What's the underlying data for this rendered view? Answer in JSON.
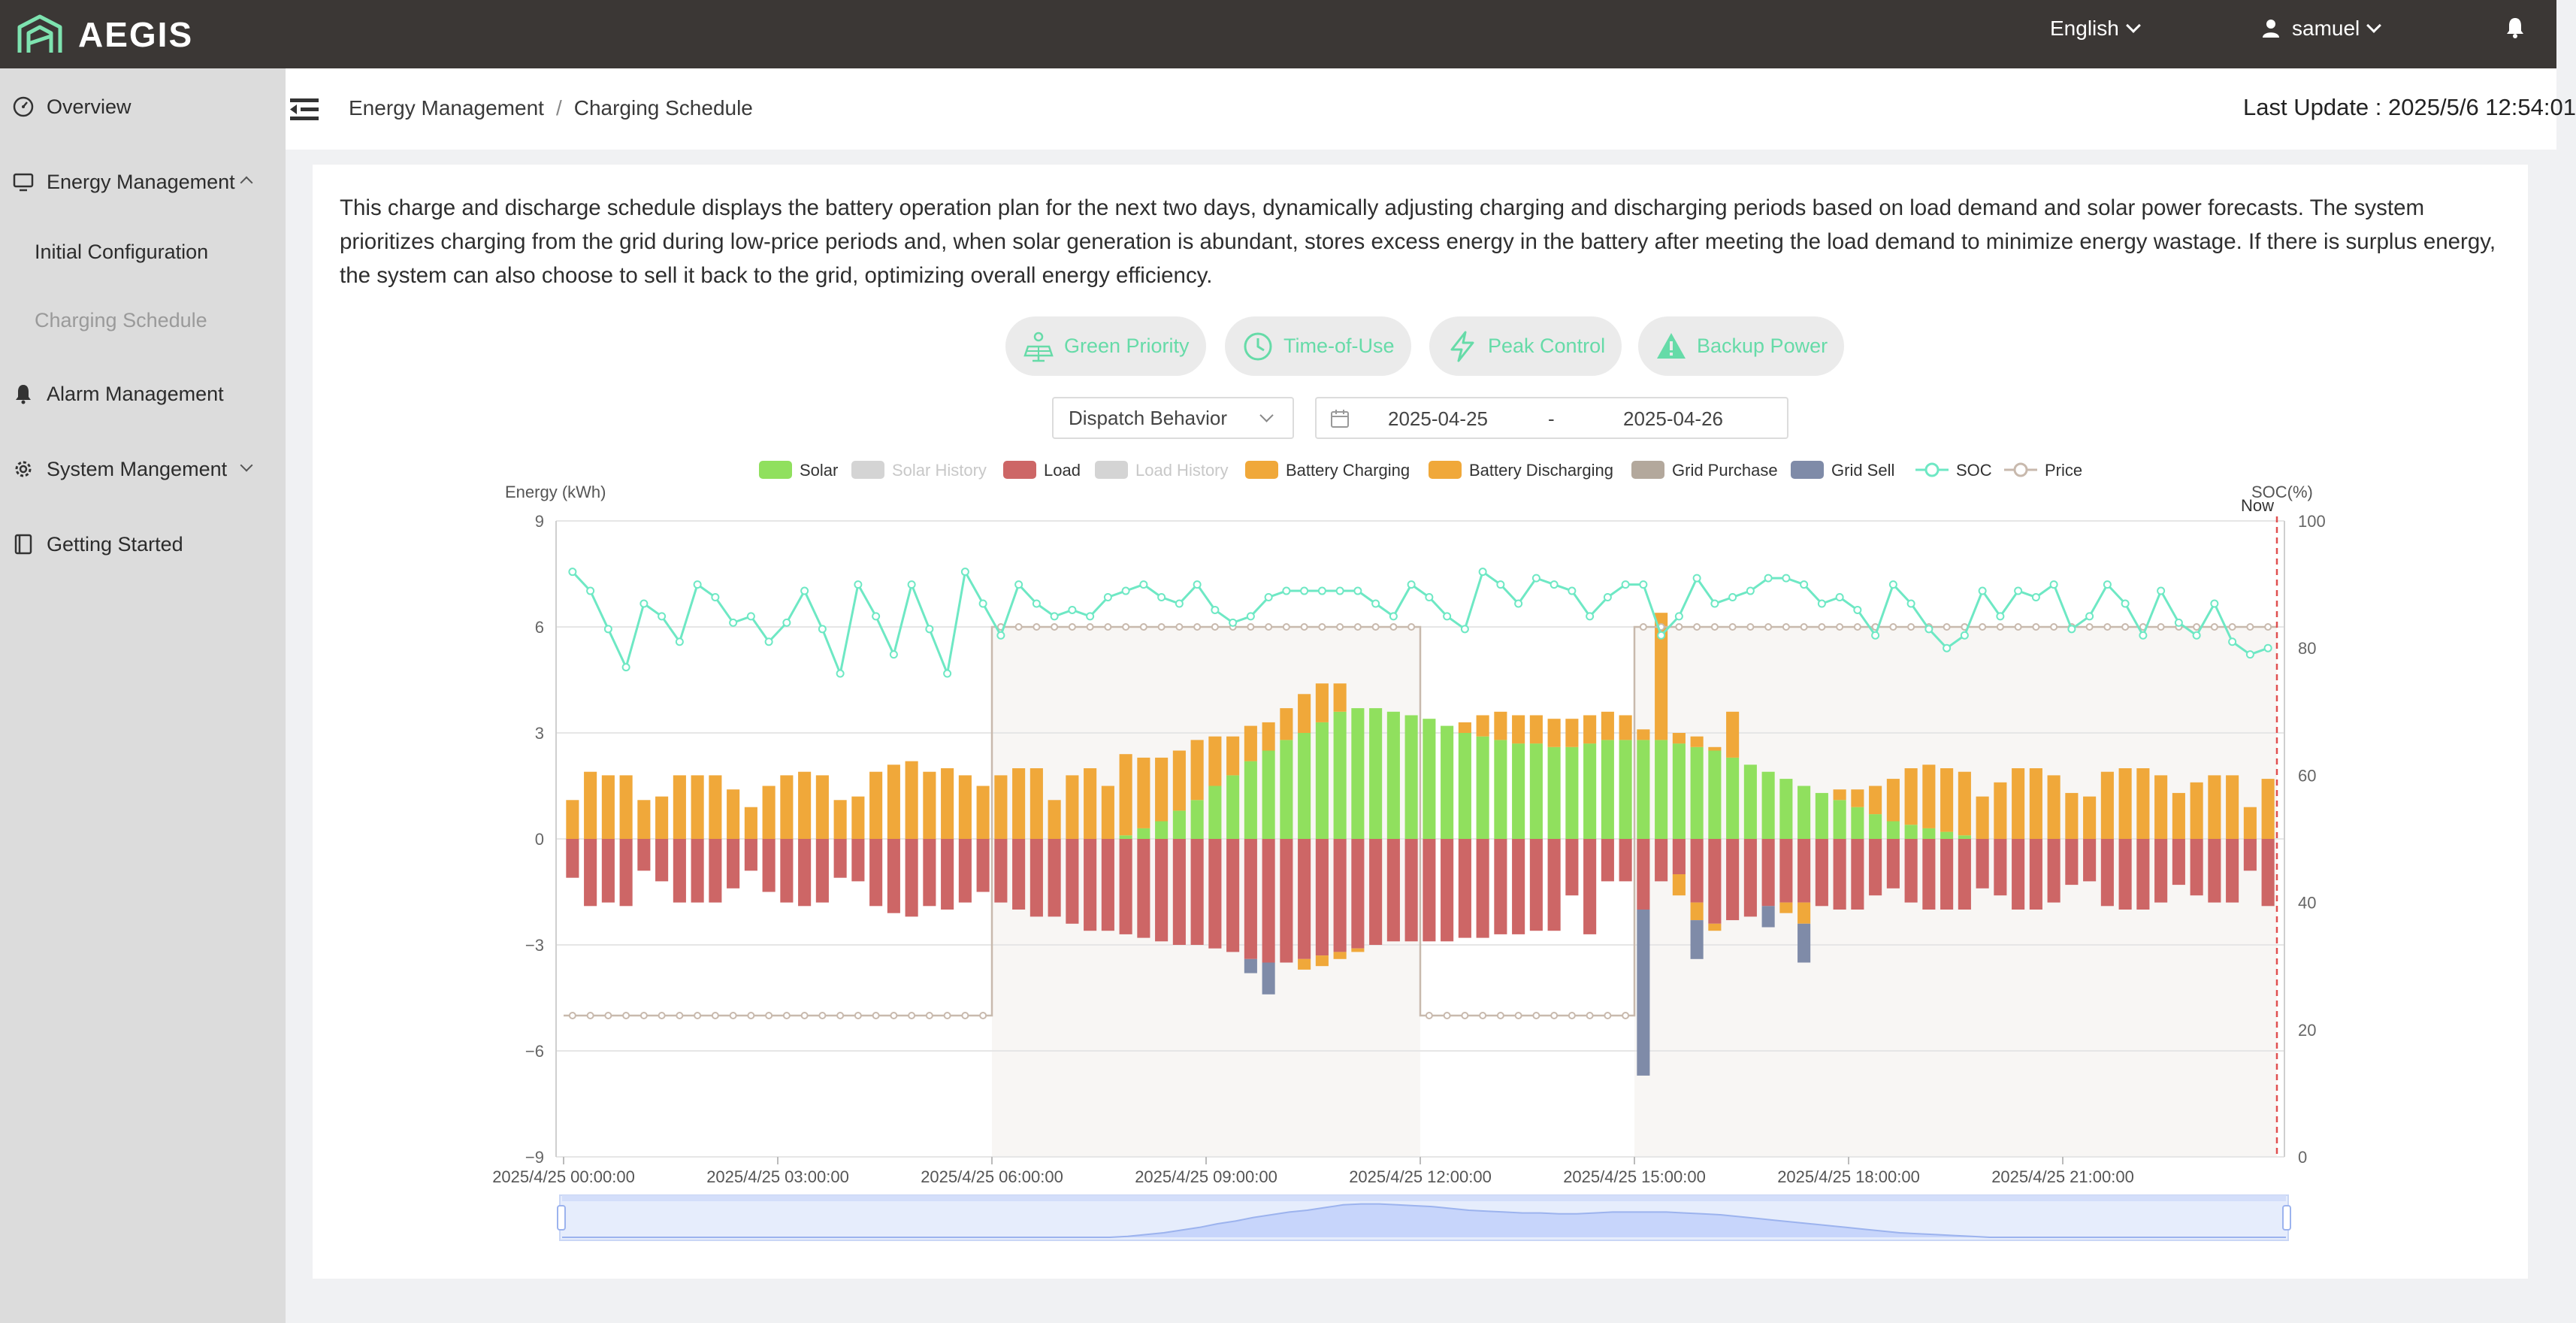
{
  "app": {
    "brand": "AEGIS",
    "language": "English",
    "user": "samuel"
  },
  "sidebar": {
    "overview": "Overview",
    "energy_management": "Energy Management",
    "initial_configuration": "Initial Configuration",
    "charging_schedule": "Charging Schedule",
    "alarm_management": "Alarm Management",
    "system_management": "System Mangement",
    "getting_started": "Getting Started"
  },
  "header": {
    "breadcrumb_parent": "Energy Management",
    "breadcrumb_sep": "/",
    "breadcrumb_current": "Charging Schedule",
    "last_update": "Last Update : 2025/5/6 12:54:01"
  },
  "description": "This charge and discharge schedule displays the battery operation plan for the next two days, dynamically adjusting charging and discharging periods based on load demand and solar power forecasts. The system prioritizes charging from the grid during low-price periods and, when solar generation is abundant, stores excess energy in the battery after meeting the load demand to minimize energy wastage. If there is surplus energy, the system can also choose to sell it back to the grid, optimizing overall energy efficiency.",
  "modes": [
    "Green Priority",
    "Time-of-Use",
    "Peak Control",
    "Backup Power"
  ],
  "filters": {
    "dispatch": "Dispatch Behavior",
    "date_from": "2025-04-25",
    "date_sep": "-",
    "date_to": "2025-04-26"
  },
  "colors": {
    "accent": "#66dba8",
    "solar": "#90e05e",
    "load": "#cd6666",
    "battery_charging": "#f0a83a",
    "battery_discharging": "#f0a83a",
    "grid_purchase": "#b3a89c",
    "grid_sell": "#7f8ba8",
    "soc": "#6ee8c4",
    "price": "#c8b9ad",
    "history": "#d4d4d4",
    "now_line": "#e05050"
  },
  "chart_data": {
    "type": "bar",
    "ylabel_left": "Energy (kWh)",
    "ylabel_right": "SOC(%)",
    "now_label": "Now",
    "ylim_left": [
      -9,
      9
    ],
    "yticks_left": [
      "9",
      "6",
      "3",
      "0",
      "−3",
      "−6",
      "−9"
    ],
    "ylim_right": [
      0,
      100
    ],
    "yticks_right": [
      "100",
      "80",
      "60",
      "40",
      "20",
      "0"
    ],
    "xticks": [
      "2025/4/25 00:00:00",
      "2025/4/25 03:00:00",
      "2025/4/25 06:00:00",
      "2025/4/25 09:00:00",
      "2025/4/25 12:00:00",
      "2025/4/25 15:00:00",
      "2025/4/25 18:00:00",
      "2025/4/25 21:00:00"
    ],
    "interval_minutes": 15,
    "legend": [
      "Solar",
      "Solar History",
      "Load",
      "Load History",
      "Battery Charging",
      "Battery Discharging",
      "Grid Purchase",
      "Grid Sell",
      "SOC",
      "Price"
    ],
    "solar": [
      0,
      0,
      0,
      0,
      0,
      0,
      0,
      0,
      0,
      0,
      0,
      0,
      0,
      0,
      0,
      0,
      0,
      0,
      0,
      0,
      0,
      0,
      0,
      0,
      0,
      0,
      0,
      0,
      0,
      0,
      0,
      0.1,
      0.3,
      0.5,
      0.8,
      1.1,
      1.5,
      1.8,
      2.2,
      2.5,
      2.8,
      3.0,
      3.3,
      3.6,
      3.7,
      3.7,
      3.6,
      3.5,
      3.4,
      3.2,
      3.0,
      2.9,
      2.8,
      2.7,
      2.7,
      2.6,
      2.6,
      2.7,
      2.8,
      2.8,
      2.8,
      2.8,
      2.7,
      2.6,
      2.5,
      2.3,
      2.1,
      1.9,
      1.7,
      1.5,
      1.3,
      1.1,
      0.9,
      0.7,
      0.5,
      0.4,
      0.3,
      0.2,
      0.1,
      0,
      0,
      0,
      0,
      0,
      0,
      0,
      0,
      0,
      0,
      0,
      0,
      0,
      0,
      0,
      0,
      0
    ],
    "battery_charging": [
      1.1,
      1.9,
      1.8,
      1.8,
      1.1,
      1.2,
      1.8,
      1.8,
      1.8,
      1.4,
      0.9,
      1.5,
      1.8,
      1.9,
      1.8,
      1.1,
      1.2,
      1.9,
      2.1,
      2.2,
      1.9,
      2.0,
      1.8,
      1.5,
      1.8,
      2.0,
      2.0,
      1.1,
      1.8,
      2.0,
      1.5,
      2.3,
      2.0,
      1.8,
      1.7,
      1.7,
      1.4,
      1.1,
      1.0,
      0.8,
      0.9,
      1.1,
      1.1,
      0.8,
      0,
      0,
      0,
      0,
      0,
      0,
      0.3,
      0.6,
      0.8,
      0.8,
      0.8,
      0.8,
      0.8,
      0.8,
      0.8,
      0.7,
      0.3,
      3.6,
      0.3,
      0.3,
      0.1,
      1.3,
      0,
      0,
      0,
      0,
      0,
      0.3,
      0.5,
      0.8,
      1.2,
      1.6,
      1.8,
      1.8,
      1.8,
      1.2,
      1.6,
      2.0,
      2.0,
      1.8,
      1.3,
      1.2,
      1.9,
      2.0,
      2.0,
      1.8,
      1.3,
      1.6,
      1.8,
      1.8,
      0.9,
      1.7
    ],
    "load": [
      -1.1,
      -1.9,
      -1.8,
      -1.9,
      -0.9,
      -1.2,
      -1.8,
      -1.8,
      -1.8,
      -1.4,
      -0.9,
      -1.5,
      -1.8,
      -1.9,
      -1.8,
      -1.1,
      -1.2,
      -1.9,
      -2.1,
      -2.2,
      -1.9,
      -2.0,
      -1.8,
      -1.5,
      -1.8,
      -2.0,
      -2.2,
      -2.2,
      -2.4,
      -2.6,
      -2.6,
      -2.7,
      -2.8,
      -2.9,
      -3.0,
      -3.0,
      -3.1,
      -3.2,
      -3.4,
      -3.5,
      -3.5,
      -3.4,
      -3.3,
      -3.2,
      -3.1,
      -3.0,
      -2.9,
      -2.9,
      -2.9,
      -2.9,
      -2.8,
      -2.8,
      -2.7,
      -2.7,
      -2.6,
      -2.6,
      -1.6,
      -2.7,
      -1.2,
      -1.2,
      -2.0,
      -1.2,
      -1.0,
      -1.8,
      -2.4,
      -2.3,
      -2.2,
      -1.9,
      -1.8,
      -1.8,
      -1.9,
      -2.0,
      -2.0,
      -1.6,
      -1.4,
      -1.8,
      -2.0,
      -2.0,
      -2.0,
      -1.4,
      -1.6,
      -2.0,
      -2.0,
      -1.8,
      -1.3,
      -1.2,
      -1.9,
      -2.0,
      -2.0,
      -1.8,
      -1.3,
      -1.6,
      -1.8,
      -1.8,
      -0.9,
      -1.9
    ],
    "battery_discharging": [
      0,
      0,
      0,
      0,
      0,
      0,
      0,
      0,
      0,
      0,
      0,
      0,
      0,
      0,
      0,
      0,
      0,
      0,
      0,
      0,
      0,
      0,
      0,
      0,
      0,
      0,
      0,
      0,
      0,
      0,
      0,
      0,
      0,
      0,
      0,
      0,
      0,
      0,
      0,
      0,
      0,
      -0.3,
      -0.3,
      -0.2,
      -0.1,
      0,
      0,
      0,
      0,
      0,
      0,
      0,
      0,
      0,
      0,
      0,
      0,
      0,
      0,
      0,
      0,
      0,
      -0.6,
      -0.5,
      -0.2,
      0,
      0,
      0,
      -0.3,
      -0.6,
      0,
      0,
      0,
      0,
      0,
      0,
      0,
      0,
      0,
      0,
      0,
      0,
      0,
      0,
      0,
      0,
      0,
      0,
      0,
      0,
      0,
      0,
      0,
      0,
      0,
      0
    ],
    "grid_sell": [
      0,
      0,
      0,
      0,
      0,
      0,
      0,
      0,
      0,
      0,
      0,
      0,
      0,
      0,
      0,
      0,
      0,
      0,
      0,
      0,
      0,
      0,
      0,
      0,
      0,
      0,
      0,
      0,
      0,
      0,
      0,
      0,
      0,
      0,
      0,
      0,
      0,
      0,
      -0.4,
      -0.9,
      0,
      0,
      0,
      0,
      0,
      0,
      0,
      0,
      0,
      0,
      0,
      0,
      0,
      0,
      0,
      0,
      0,
      0,
      0,
      0,
      -4.7,
      0,
      0,
      -1.1,
      0,
      0,
      0,
      -0.6,
      0,
      -1.1,
      0,
      0,
      0,
      0,
      0,
      0,
      0,
      0,
      0,
      0,
      0,
      0,
      0,
      0,
      0,
      0,
      0,
      0,
      0,
      0,
      0,
      0,
      0,
      0,
      0,
      0
    ],
    "soc": [
      92,
      89,
      83,
      77,
      87,
      85,
      81,
      90,
      88,
      84,
      85,
      81,
      84,
      89,
      83,
      76,
      90,
      85,
      79,
      90,
      83,
      76,
      92,
      87,
      82,
      90,
      87,
      85,
      86,
      85,
      88,
      89,
      90,
      88,
      87,
      90,
      86,
      84,
      85,
      88,
      89,
      89,
      89,
      89,
      89,
      87,
      85,
      90,
      88,
      85,
      83,
      92,
      90,
      87,
      91,
      90,
      89,
      85,
      88,
      90,
      90,
      82,
      85,
      91,
      87,
      88,
      89,
      91,
      91,
      90,
      87,
      88,
      86,
      82,
      90,
      87,
      83,
      80,
      82,
      89,
      85,
      89,
      88,
      90,
      83,
      85,
      90,
      87,
      82,
      89,
      84,
      82,
      87,
      81,
      79,
      80
    ],
    "price": [
      -5.0,
      -5.0,
      -5.0,
      -5.0,
      -5.0,
      -5.0,
      -5.0,
      -5.0,
      -5.0,
      -5.0,
      -5.0,
      -5.0,
      -5.0,
      -5.0,
      -5.0,
      -5.0,
      -5.0,
      -5.0,
      -5.0,
      -5.0,
      -5.0,
      -5.0,
      -5.0,
      -5.0,
      6.0,
      6.0,
      6.0,
      6.0,
      6.0,
      6.0,
      6.0,
      6.0,
      6.0,
      6.0,
      6.0,
      6.0,
      6.0,
      6.0,
      6.0,
      6.0,
      6.0,
      6.0,
      6.0,
      6.0,
      6.0,
      6.0,
      6.0,
      6.0,
      -5.0,
      -5.0,
      -5.0,
      -5.0,
      -5.0,
      -5.0,
      -5.0,
      -5.0,
      -5.0,
      -5.0,
      -5.0,
      -5.0,
      6.0,
      6.0,
      6.0,
      6.0,
      6.0,
      6.0,
      6.0,
      6.0,
      6.0,
      6.0,
      6.0,
      6.0,
      6.0,
      6.0,
      6.0,
      6.0,
      6.0,
      6.0,
      6.0,
      6.0,
      6.0,
      6.0,
      6.0,
      6.0,
      6.0,
      6.0,
      6.0,
      6.0,
      6.0,
      6.0,
      6.0,
      6.0,
      6.0,
      6.0,
      6.0,
      6.0
    ]
  }
}
